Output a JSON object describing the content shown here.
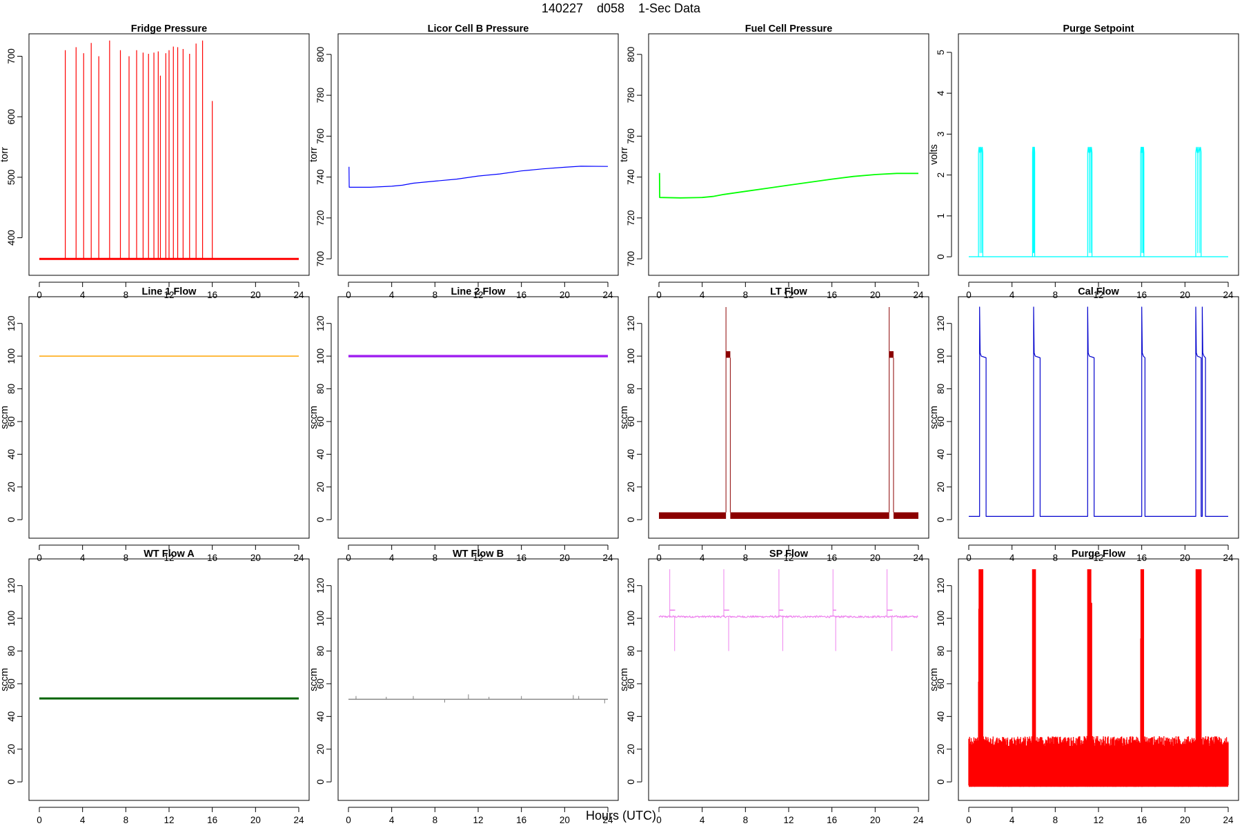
{
  "figure": {
    "title": "140227    d058    1-Sec Data",
    "xlabel": "Hours (UTC)"
  },
  "chart_data": [
    {
      "type": "line",
      "title": "Fridge Pressure",
      "ylabel": "torr",
      "color": "#ff0000",
      "xlim": [
        0,
        24
      ],
      "ylim": [
        355,
        720
      ],
      "xticks": [
        0,
        4,
        8,
        12,
        16,
        20,
        24
      ],
      "yticks": [
        400,
        500,
        600,
        700
      ],
      "baseline": 365,
      "line_width": 3,
      "spikes": [
        [
          2.4,
          710
        ],
        [
          3.4,
          715
        ],
        [
          4.1,
          705
        ],
        [
          4.8,
          722
        ],
        [
          5.5,
          700
        ],
        [
          6.5,
          726
        ],
        [
          7.5,
          710
        ],
        [
          8.3,
          700
        ],
        [
          9.0,
          710
        ],
        [
          9.6,
          706
        ],
        [
          10.1,
          704
        ],
        [
          10.6,
          706
        ],
        [
          11.0,
          708
        ],
        [
          11.2,
          668
        ],
        [
          11.7,
          705
        ],
        [
          12.0,
          710
        ],
        [
          12.4,
          716
        ],
        [
          12.8,
          715
        ],
        [
          13.3,
          712
        ],
        [
          13.9,
          704
        ],
        [
          14.5,
          721
        ],
        [
          15.1,
          726
        ],
        [
          16.0,
          626
        ]
      ]
    },
    {
      "type": "line",
      "title": "Licor Cell B Pressure",
      "ylabel": "torr",
      "color": "#0000ff",
      "xlim": [
        0,
        24
      ],
      "ylim": [
        697,
        805
      ],
      "xticks": [
        0,
        4,
        8,
        12,
        16,
        20,
        24
      ],
      "yticks": [
        700,
        720,
        740,
        760,
        780,
        800
      ],
      "line_width": 1.2,
      "points": [
        [
          0.05,
          745
        ],
        [
          0.07,
          735
        ],
        [
          1,
          735
        ],
        [
          2,
          735
        ],
        [
          4,
          735.5
        ],
        [
          5,
          736
        ],
        [
          6,
          737
        ],
        [
          8,
          738
        ],
        [
          10,
          739
        ],
        [
          12,
          740.5
        ],
        [
          14,
          741.5
        ],
        [
          16,
          743
        ],
        [
          18,
          744
        ],
        [
          20,
          744.8
        ],
        [
          21.5,
          745.3
        ],
        [
          24,
          745.2
        ]
      ]
    },
    {
      "type": "line",
      "title": "Fuel Cell Pressure",
      "ylabel": "torr",
      "color": "#00ff00",
      "xlim": [
        0,
        24
      ],
      "ylim": [
        697,
        805
      ],
      "xticks": [
        0,
        4,
        8,
        12,
        16,
        20,
        24
      ],
      "yticks": [
        700,
        720,
        740,
        760,
        780,
        800
      ],
      "line_width": 1.8,
      "points": [
        [
          0.05,
          742
        ],
        [
          0.07,
          730
        ],
        [
          2,
          729.8
        ],
        [
          4,
          730
        ],
        [
          5,
          730.5
        ],
        [
          6,
          731.5
        ],
        [
          8,
          733
        ],
        [
          10,
          734.5
        ],
        [
          12,
          736
        ],
        [
          14,
          737.5
        ],
        [
          16,
          739
        ],
        [
          18,
          740.3
        ],
        [
          20,
          741.2
        ],
        [
          22,
          741.8
        ],
        [
          24,
          741.8
        ]
      ]
    },
    {
      "type": "line",
      "title": "Purge Setpoint",
      "ylabel": "volts",
      "color": "#00ffff",
      "xlim": [
        0,
        24
      ],
      "ylim": [
        -0.2,
        5.2
      ],
      "xticks": [
        0,
        4,
        8,
        12,
        16,
        20,
        24
      ],
      "yticks": [
        0,
        1,
        2,
        3,
        4,
        5
      ],
      "line_width": 1.2,
      "baseline": 0,
      "level": 2.6,
      "pulses": [
        [
          0.9,
          1.3
        ],
        [
          5.9,
          6.1
        ],
        [
          11.0,
          11.4
        ],
        [
          15.9,
          16.2
        ],
        [
          21.0,
          21.5
        ]
      ]
    },
    {
      "type": "line",
      "title": "Line 1 Flow",
      "ylabel": "sccm",
      "color": "#ffa500",
      "xlim": [
        0,
        24
      ],
      "ylim": [
        -5,
        130
      ],
      "xticks": [
        0,
        4,
        8,
        12,
        16,
        20,
        24
      ],
      "yticks": [
        0,
        20,
        40,
        60,
        80,
        100,
        120
      ],
      "line_width": 1.5,
      "points": [
        [
          0,
          100
        ],
        [
          24,
          100
        ]
      ]
    },
    {
      "type": "line",
      "title": "Line 2 Flow",
      "ylabel": "sccm",
      "color": "#a020f0",
      "xlim": [
        0,
        24
      ],
      "ylim": [
        -5,
        130
      ],
      "xticks": [
        0,
        4,
        8,
        12,
        16,
        20,
        24
      ],
      "yticks": [
        0,
        20,
        40,
        60,
        80,
        100,
        120
      ],
      "line_width": 3.5,
      "points": [
        [
          0,
          100
        ],
        [
          24,
          100
        ]
      ]
    },
    {
      "type": "line",
      "title": "LT Flow",
      "ylabel": "sccm",
      "color": "#8b0000",
      "xlim": [
        0,
        24
      ],
      "ylim": [
        -5,
        130
      ],
      "xticks": [
        0,
        4,
        8,
        12,
        16,
        20,
        24
      ],
      "yticks": [
        0,
        20,
        40,
        60,
        80,
        100,
        120
      ],
      "baseline_band": [
        0.5,
        4.5
      ],
      "high_band": [
        99,
        103
      ],
      "spike_to": 130,
      "events": [
        [
          6.2,
          6.6
        ],
        [
          21.3,
          21.7
        ]
      ]
    },
    {
      "type": "line",
      "title": "Cal Flow",
      "ylabel": "sccm",
      "color": "#0000cd",
      "xlim": [
        0,
        24
      ],
      "ylim": [
        -5,
        130
      ],
      "xticks": [
        0,
        4,
        8,
        12,
        16,
        20,
        24
      ],
      "yticks": [
        0,
        20,
        40,
        60,
        80,
        100,
        120
      ],
      "line_width": 1.2,
      "baseline": 2,
      "level": 100,
      "spike_to": 130,
      "pulses": [
        [
          1.0,
          1.6
        ],
        [
          6.0,
          6.6
        ],
        [
          11.0,
          11.6
        ],
        [
          16.0,
          16.3
        ],
        [
          21.0,
          21.5
        ],
        [
          21.6,
          21.9
        ]
      ]
    },
    {
      "type": "line",
      "title": "WT Flow A",
      "ylabel": "sccm",
      "color": "#006400",
      "xlim": [
        0,
        24
      ],
      "ylim": [
        -5,
        130
      ],
      "xticks": [
        0,
        4,
        8,
        12,
        16,
        20,
        24
      ],
      "yticks": [
        0,
        20,
        40,
        60,
        80,
        100,
        120
      ],
      "line_width": 3,
      "points": [
        [
          0,
          51
        ],
        [
          24,
          51
        ]
      ]
    },
    {
      "type": "line",
      "title": "WT Flow B",
      "ylabel": "sccm",
      "color": "#808080",
      "xlim": [
        0,
        24
      ],
      "ylim": [
        -5,
        130
      ],
      "xticks": [
        0,
        4,
        8,
        12,
        16,
        20,
        24
      ],
      "yticks": [
        0,
        20,
        40,
        60,
        80,
        100,
        120
      ],
      "line_width": 1.4,
      "points": [
        [
          0,
          50.5
        ],
        [
          24,
          50.5
        ]
      ],
      "spikes": [
        [
          0.7,
          52.5
        ],
        [
          3.5,
          52
        ],
        [
          6,
          52.5
        ],
        [
          8.9,
          48.5
        ],
        [
          11.1,
          53.5
        ],
        [
          13,
          52
        ],
        [
          16,
          52.5
        ],
        [
          20.8,
          53
        ],
        [
          21.3,
          52.5
        ],
        [
          23.7,
          48
        ]
      ]
    },
    {
      "type": "line",
      "title": "SP Flow",
      "ylabel": "sccm",
      "color": "#ee82ee",
      "xlim": [
        0,
        24
      ],
      "ylim": [
        -5,
        130
      ],
      "xticks": [
        0,
        4,
        8,
        12,
        16,
        20,
        24
      ],
      "yticks": [
        0,
        20,
        40,
        60,
        80,
        100,
        120
      ],
      "line_width": 1.8,
      "baseline": 101,
      "level": 105,
      "spike_to": 130,
      "dip_to": 80,
      "pulses": [
        [
          1.0,
          1.5
        ],
        [
          6.0,
          6.5
        ],
        [
          11.1,
          11.5
        ],
        [
          16.1,
          16.4
        ],
        [
          21.1,
          21.6
        ]
      ]
    },
    {
      "type": "area",
      "title": "Purge Flow",
      "ylabel": "sccm",
      "color": "#ff0000",
      "xlim": [
        0,
        24
      ],
      "ylim": [
        -5,
        130
      ],
      "xticks": [
        0,
        4,
        8,
        12,
        16,
        20,
        24
      ],
      "yticks": [
        0,
        20,
        40,
        60,
        80,
        100,
        120
      ],
      "noise_range": [
        -3,
        28
      ],
      "spike_to": 130,
      "pulses": [
        [
          0.9,
          1.3
        ],
        [
          5.9,
          6.2
        ],
        [
          11.0,
          11.4
        ],
        [
          15.9,
          16.2
        ],
        [
          21.0,
          21.5
        ]
      ]
    }
  ]
}
